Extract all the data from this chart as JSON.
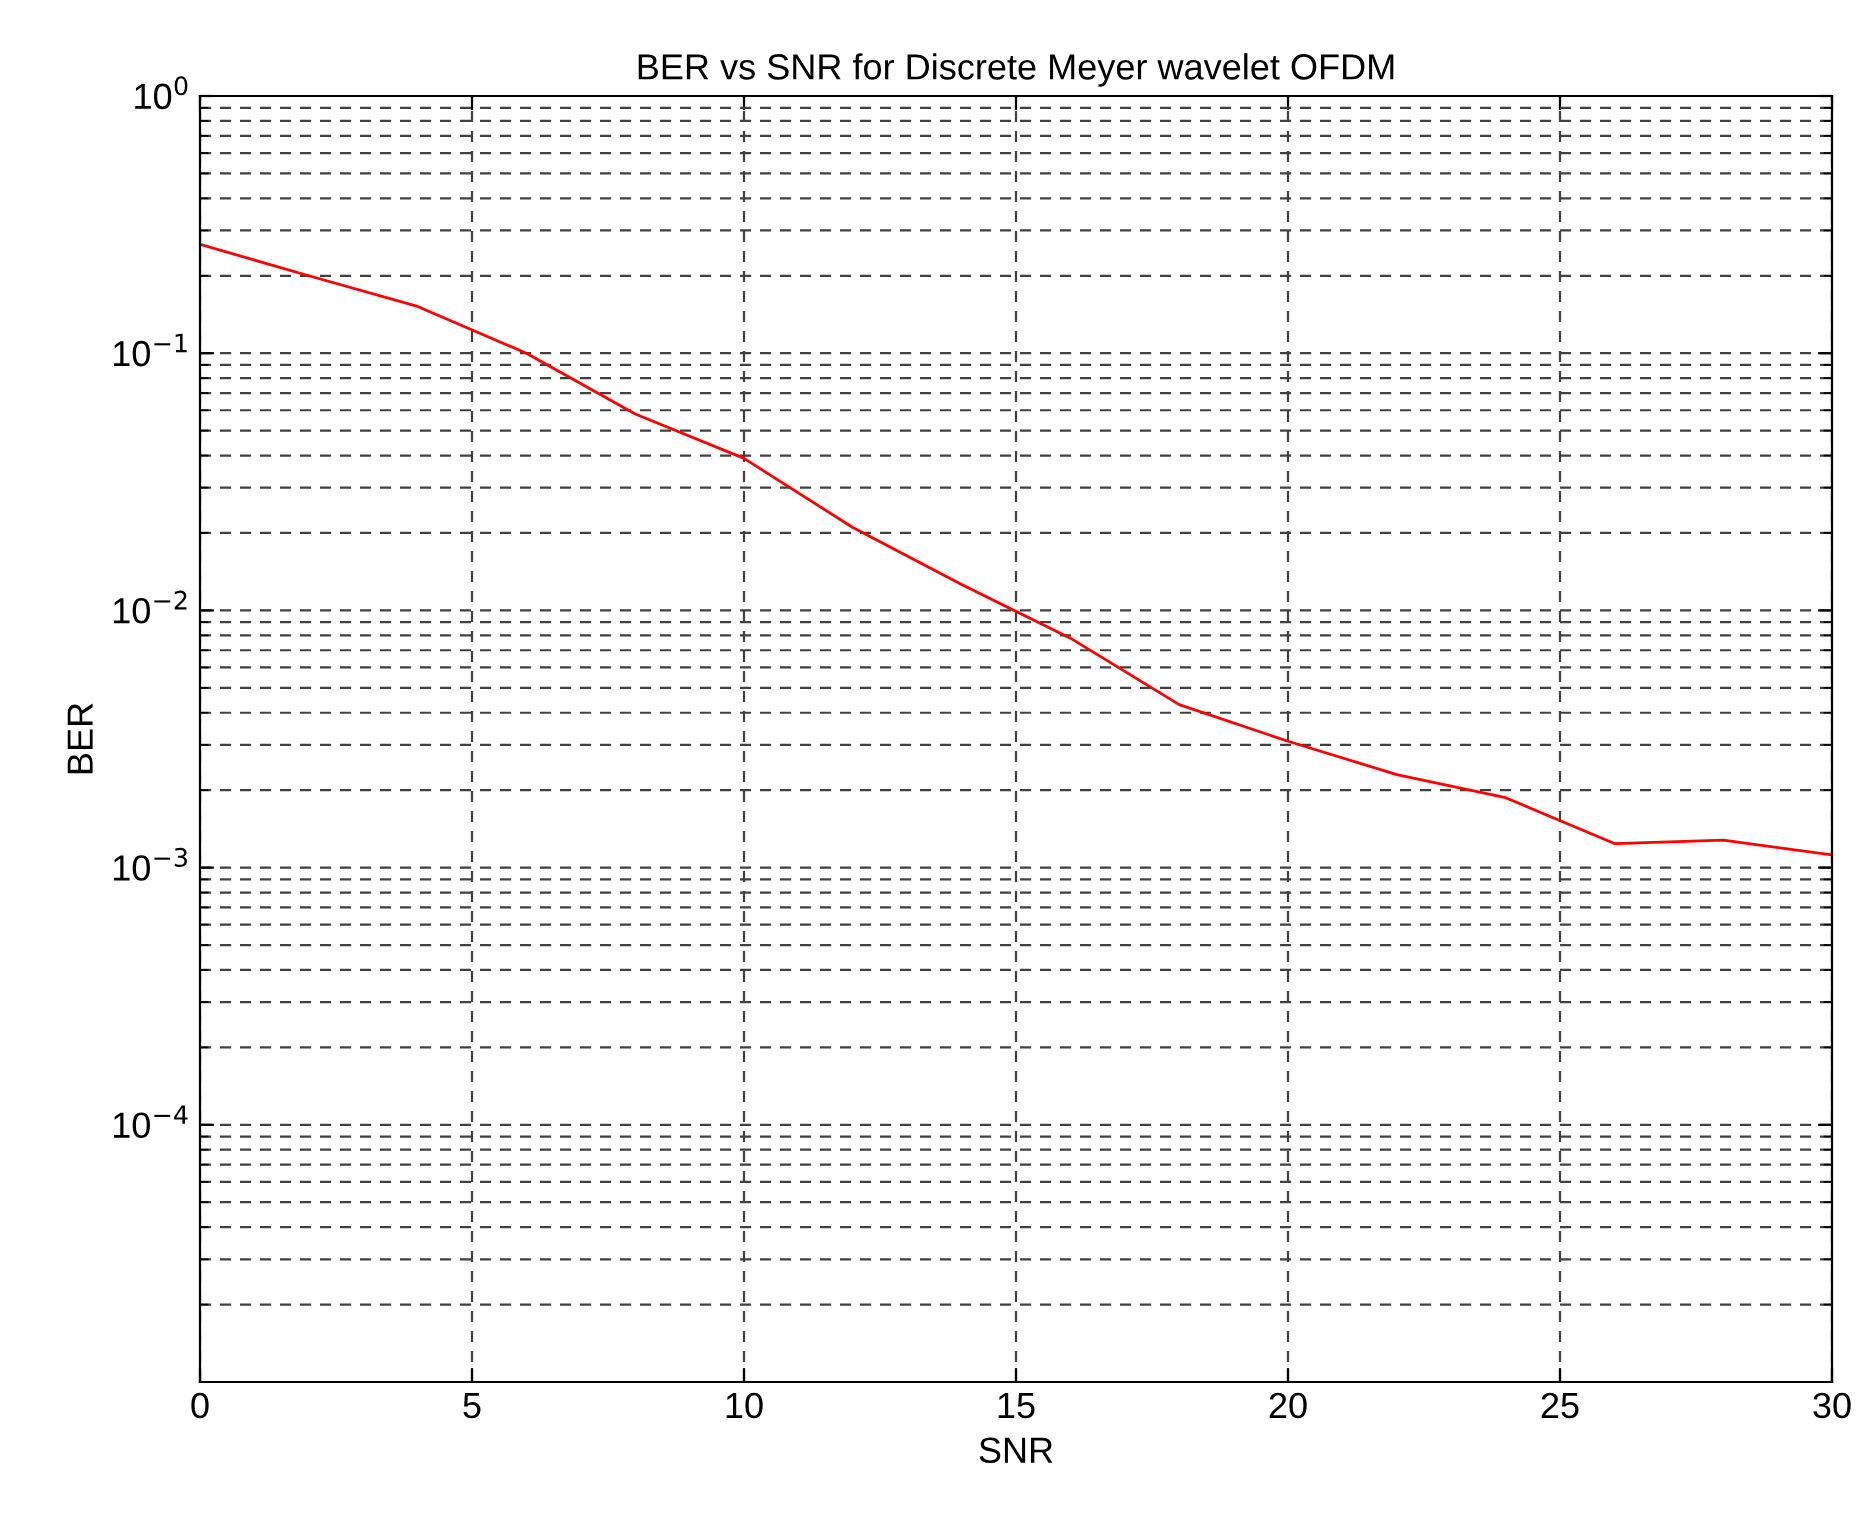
{
  "chart_data": {
    "type": "line",
    "title": "BER vs SNR for Discrete Meyer wavelet OFDM",
    "xlabel": "SNR",
    "ylabel": "BER",
    "x": [
      0,
      2,
      4,
      6,
      8,
      10,
      12,
      14,
      16,
      18,
      20,
      22,
      24,
      26,
      28,
      30
    ],
    "series": [
      {
        "color": "#ff0000",
        "values": [
          0.265,
          0.2,
          0.152,
          0.1,
          0.058,
          0.039,
          0.021,
          0.0126,
          0.0078,
          0.0043,
          0.0031,
          0.0023,
          0.00187,
          0.00124,
          0.00128,
          0.00112
        ]
      }
    ],
    "log": "y",
    "xlim": [
      0,
      30
    ],
    "xticks": [
      0,
      5,
      10,
      15,
      20,
      25,
      30
    ],
    "ylim": [
      1e-05,
      1
    ],
    "yticks": [
      {
        "value": 0.0001,
        "label": "10$^{−4}$"
      },
      {
        "value": 0.001,
        "label": "10$^{−3}$"
      },
      {
        "value": 0.01,
        "label": "10$^{−2}$"
      },
      {
        "value": 0.1,
        "label": "10$^{−1}$"
      },
      {
        "value": 1,
        "label": "10$^{0}$"
      }
    ],
    "grid": true,
    "marker": "none",
    "line_style": "solid"
  }
}
